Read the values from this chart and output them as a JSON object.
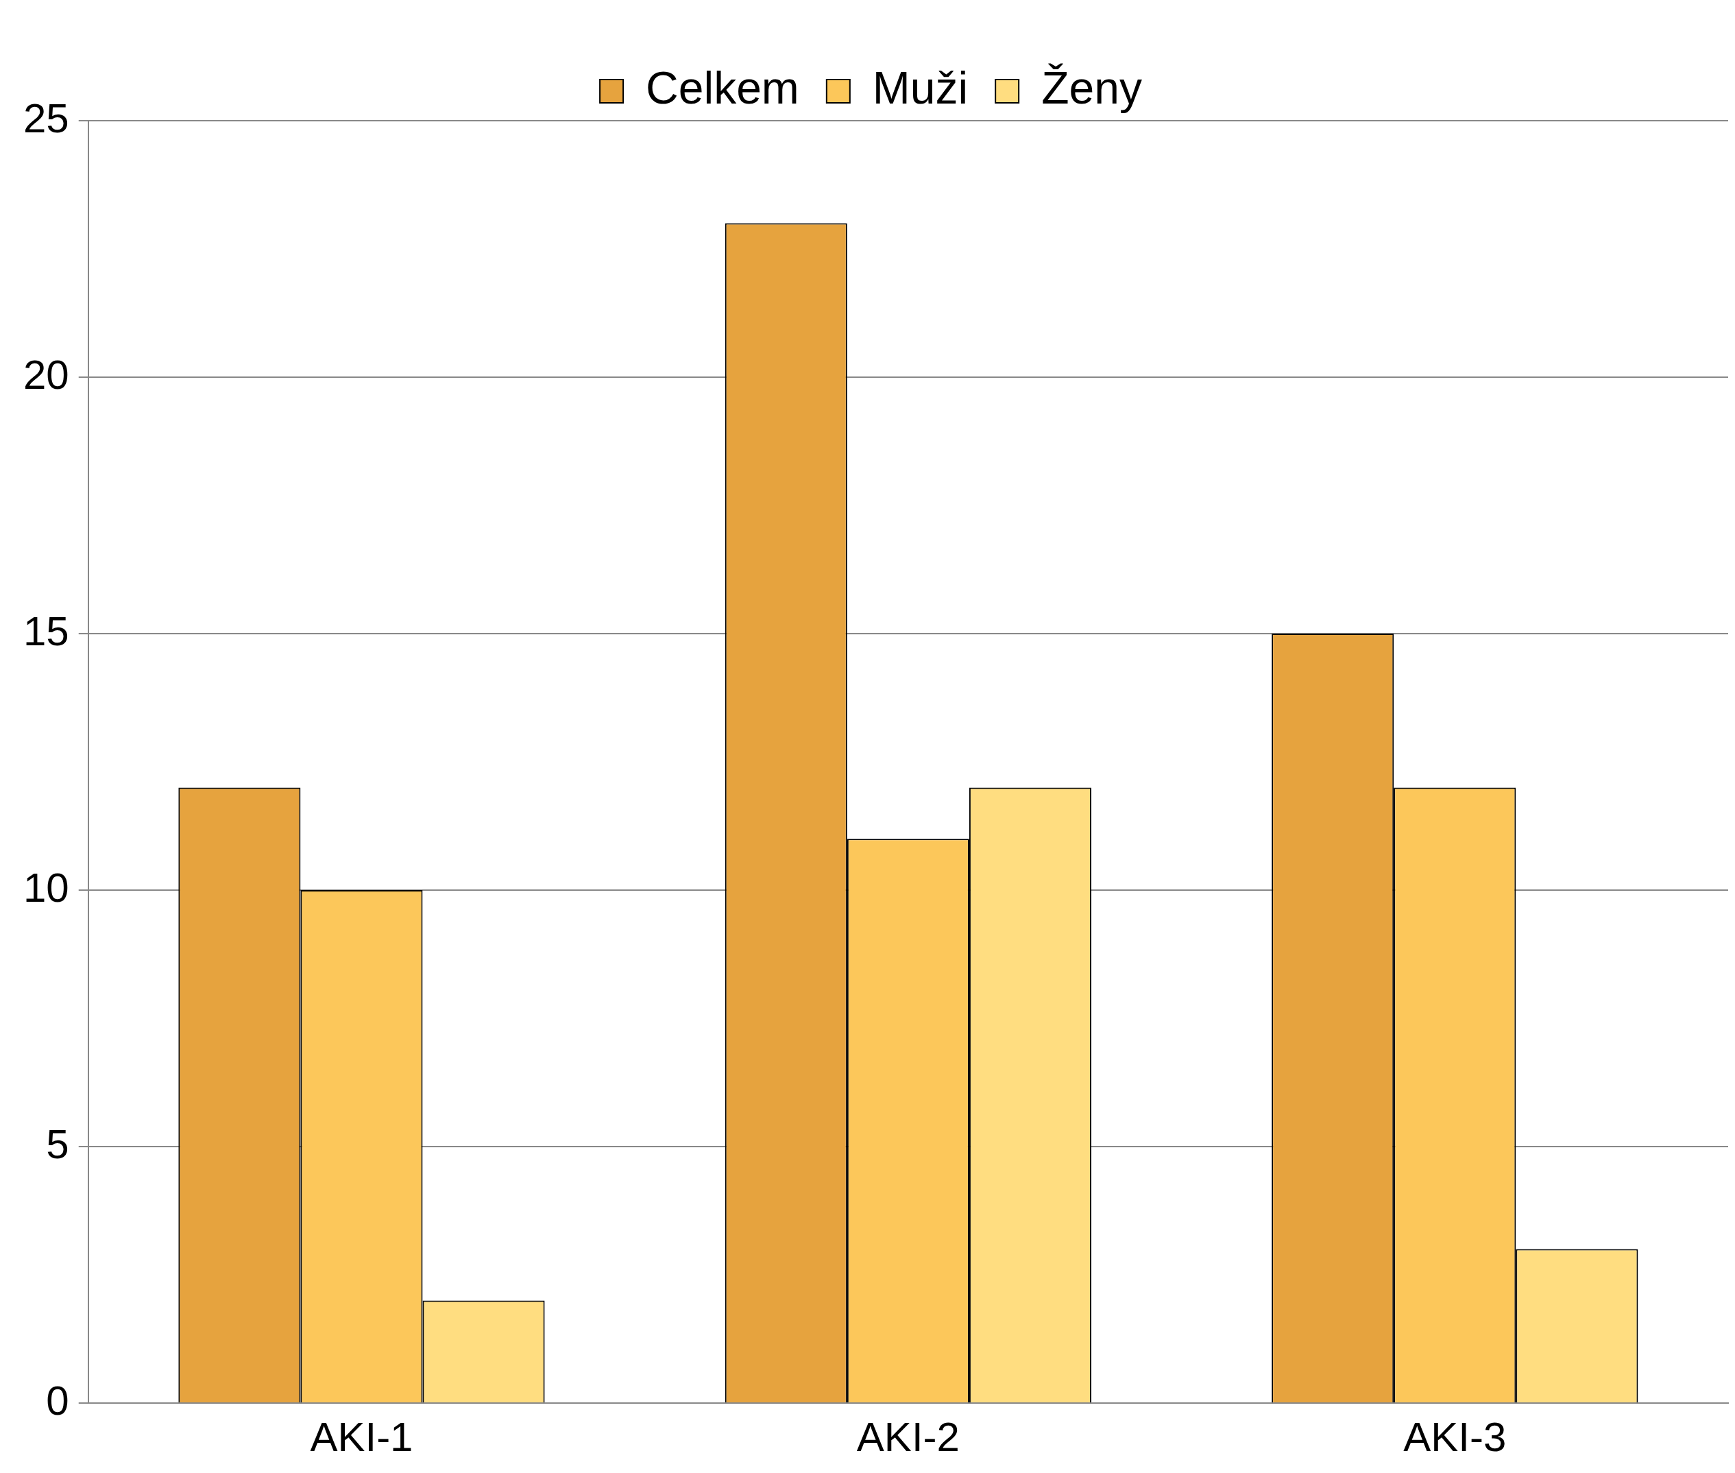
{
  "chart_data": {
    "type": "bar",
    "categories": [
      "AKI-1",
      "AKI-2",
      "AKI-3"
    ],
    "series": [
      {
        "name": "Celkem",
        "color": "#e6a33e",
        "values": [
          12,
          23,
          15
        ]
      },
      {
        "name": "Muži",
        "color": "#fcc75a",
        "values": [
          10,
          11,
          12
        ]
      },
      {
        "name": "Ženy",
        "color": "#ffdd80",
        "values": [
          2,
          12,
          3
        ]
      }
    ],
    "ylim": [
      0,
      25
    ],
    "yticks": [
      0,
      5,
      10,
      15,
      20,
      25
    ],
    "grid": "y",
    "legend": "top"
  }
}
